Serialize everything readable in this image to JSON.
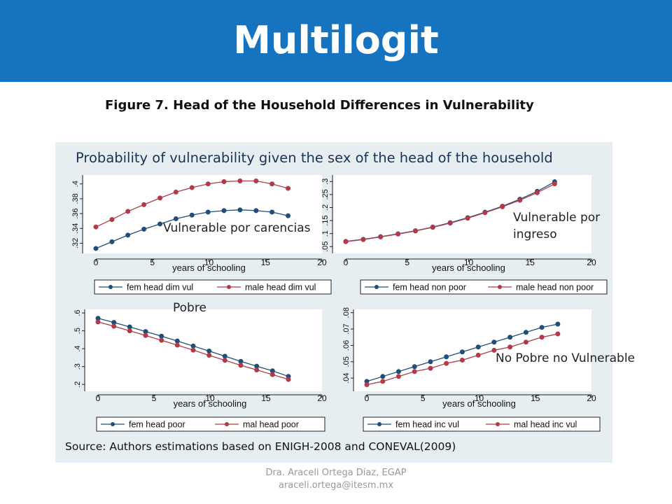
{
  "header": {
    "title": "Multilogit"
  },
  "figure_caption": "Figure 7. Head of the Household Differences in Vulnerability",
  "chart_title": "Probability of vulnerability given the sex of the head of the household",
  "source": "Source: Authors estimations based on ENIGH-2008 and CONEVAL(2009)",
  "colors": {
    "banner": "#1673c0",
    "female": "#1f4e79",
    "male": "#b23a48",
    "panel_bg": "#e6eef2"
  },
  "chart_data": [
    {
      "type": "line",
      "annotation": "Vulnerable por carencias",
      "xlabel": "years of schooling",
      "xticks": [
        "0",
        "5",
        "10",
        "15",
        "20"
      ],
      "xlim": [
        0,
        20
      ],
      "yticks": [
        ".32",
        ".34",
        ".36",
        ".38",
        ".4"
      ],
      "ylim": [
        0.312,
        0.412
      ],
      "x": [
        0,
        1.42,
        2.83,
        4.25,
        5.67,
        7.08,
        8.5,
        9.92,
        11.33,
        12.75,
        14.17,
        15.58,
        17
      ],
      "series": [
        {
          "name": "fem head dim vul",
          "values": [
            0.313,
            0.322,
            0.331,
            0.339,
            0.346,
            0.353,
            0.358,
            0.362,
            0.364,
            0.365,
            0.364,
            0.362,
            0.357
          ]
        },
        {
          "name": "male head dim vul",
          "values": [
            0.342,
            0.352,
            0.363,
            0.372,
            0.381,
            0.389,
            0.395,
            0.4,
            0.403,
            0.404,
            0.404,
            0.4,
            0.394
          ]
        }
      ]
    },
    {
      "type": "line",
      "annotation": "Vulnerable por ingreso",
      "xlabel": "years of schooling",
      "xticks": [
        "0",
        "5",
        "10",
        "15",
        "20"
      ],
      "xlim": [
        0,
        20
      ],
      "yticks": [
        ".05",
        ".1",
        ".15",
        ".2",
        ".25",
        ".3"
      ],
      "ylim": [
        0.04,
        0.325
      ],
      "x": [
        0,
        1.42,
        2.83,
        4.25,
        5.67,
        7.08,
        8.5,
        9.92,
        11.33,
        12.75,
        14.17,
        15.58,
        17
      ],
      "series": [
        {
          "name": "fem head non poor",
          "values": [
            0.07,
            0.078,
            0.088,
            0.099,
            0.111,
            0.125,
            0.142,
            0.161,
            0.182,
            0.205,
            0.232,
            0.262,
            0.299
          ]
        },
        {
          "name": "male head non poor",
          "values": [
            0.069,
            0.077,
            0.087,
            0.098,
            0.11,
            0.124,
            0.14,
            0.159,
            0.18,
            0.203,
            0.228,
            0.257,
            0.291
          ]
        }
      ]
    },
    {
      "type": "line",
      "annotation": "Pobre",
      "xlabel": "years of schooling",
      "xticks": [
        "0",
        "5",
        "10",
        "15",
        "20"
      ],
      "xlim": [
        0,
        20
      ],
      "yticks": [
        ".2",
        ".3",
        ".4",
        ".5",
        ".6"
      ],
      "ylim": [
        0.185,
        0.62
      ],
      "x": [
        0,
        1.42,
        2.83,
        4.25,
        5.67,
        7.08,
        8.5,
        9.92,
        11.33,
        12.75,
        14.17,
        15.58,
        17
      ],
      "series": [
        {
          "name": "fem head poor",
          "values": [
            0.57,
            0.547,
            0.522,
            0.496,
            0.47,
            0.443,
            0.415,
            0.387,
            0.358,
            0.329,
            0.302,
            0.276,
            0.245
          ]
        },
        {
          "name": "mal head poor",
          "values": [
            0.55,
            0.526,
            0.5,
            0.474,
            0.447,
            0.42,
            0.392,
            0.363,
            0.335,
            0.307,
            0.281,
            0.255,
            0.228
          ]
        }
      ]
    },
    {
      "type": "line",
      "annotation": "No Pobre no Vulnerable",
      "xlabel": "years of schooling",
      "xticks": [
        "0",
        "5",
        "10",
        "15",
        "20"
      ],
      "xlim": [
        0,
        20
      ],
      "yticks": [
        ".04",
        ".05",
        ".06",
        ".07",
        ".08"
      ],
      "ylim": [
        0.0345,
        0.082
      ],
      "x": [
        0,
        1.42,
        2.83,
        4.25,
        5.67,
        7.08,
        8.5,
        9.92,
        11.33,
        12.75,
        14.17,
        15.58,
        17
      ],
      "series": [
        {
          "name": "fem head inc vul",
          "values": [
            0.038,
            0.041,
            0.044,
            0.047,
            0.05,
            0.053,
            0.056,
            0.059,
            0.062,
            0.065,
            0.068,
            0.071,
            0.073
          ]
        },
        {
          "name": "mal head inc vul",
          "values": [
            0.036,
            0.038,
            0.041,
            0.044,
            0.046,
            0.049,
            0.051,
            0.054,
            0.057,
            0.059,
            0.062,
            0.065,
            0.067
          ]
        }
      ]
    }
  ],
  "footer": {
    "line1": "Dra. Araceli Ortega Díaz, EGAP",
    "line2": "araceli.ortega@itesm.mx"
  }
}
